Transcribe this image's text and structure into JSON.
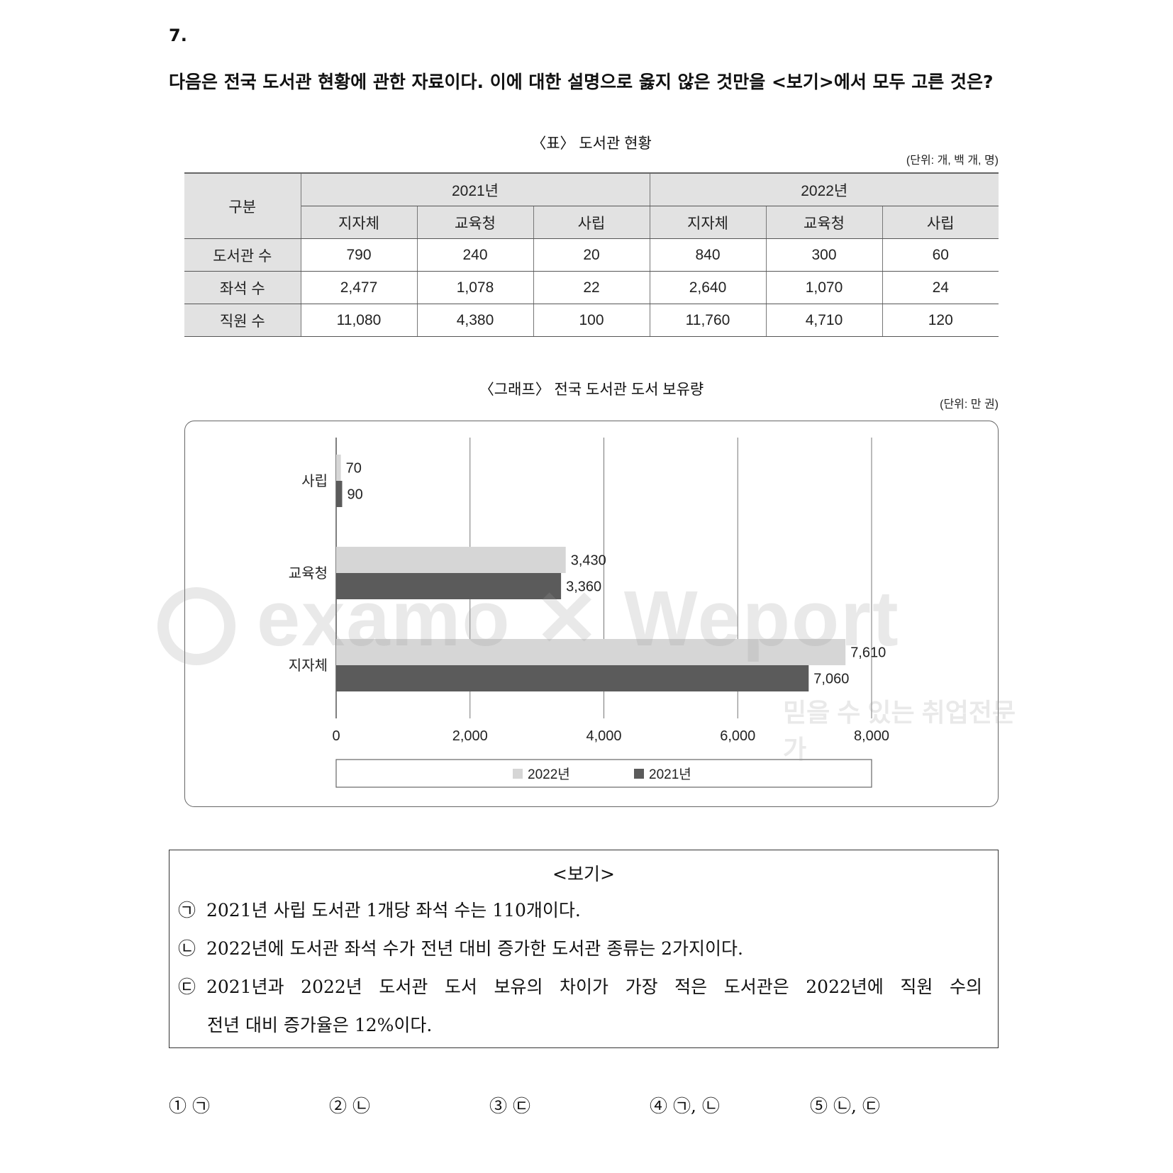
{
  "question": {
    "number": "7.",
    "text": "다음은 전국 도서관 현황에 관한 자료이다. 이에 대한 설명으로 옳지 않은 것만을 <보기>에서 모두 고른 것은?"
  },
  "table": {
    "title": "〈표〉 도서관 현황",
    "unit": "(단위: 개, 백 개, 명)",
    "corner": "구분",
    "years": [
      "2021년",
      "2022년"
    ],
    "subheaders": [
      "지자체",
      "교육청",
      "사립",
      "지자체",
      "교육청",
      "사립"
    ],
    "rows": [
      {
        "label": "도서관 수",
        "values": [
          "790",
          "240",
          "20",
          "840",
          "300",
          "60"
        ]
      },
      {
        "label": "좌석 수",
        "values": [
          "2,477",
          "1,078",
          "22",
          "2,640",
          "1,070",
          "24"
        ]
      },
      {
        "label": "직원 수",
        "values": [
          "11,080",
          "4,380",
          "100",
          "11,760",
          "4,710",
          "120"
        ]
      }
    ]
  },
  "graph": {
    "title": "〈그래프〉 전국 도서관 도서 보유량",
    "unit": "(단위: 만 권)"
  },
  "chart_data": {
    "type": "bar",
    "orientation": "horizontal",
    "categories": [
      "사립",
      "교육청",
      "지자체"
    ],
    "series": [
      {
        "name": "2022년",
        "values": [
          70,
          3430,
          7610
        ],
        "labels": [
          "70",
          "3,430",
          "7,610"
        ],
        "color": "#d6d6d6"
      },
      {
        "name": "2021년",
        "values": [
          90,
          3360,
          7060
        ],
        "labels": [
          "90",
          "3,360",
          "7,060"
        ],
        "color": "#5b5b5b"
      }
    ],
    "xlim": [
      0,
      8000
    ],
    "xticks": [
      0,
      2000,
      4000,
      6000,
      8000
    ],
    "xtick_labels": [
      "0",
      "2,000",
      "4,000",
      "6,000",
      "8,000"
    ],
    "grid": true,
    "legend": "bottom"
  },
  "watermark": {
    "brand": "examo ✕ Weport",
    "slogan": "믿을 수 있는 취업전문가"
  },
  "bogi": {
    "title": "<보기>",
    "items": [
      {
        "mark": "㉠",
        "text": "2021년 사립 도서관 1개당 좌석 수는 110개이다."
      },
      {
        "mark": "㉡",
        "text": "2022년에 도서관 좌석 수가 전년 대비 증가한 도서관 종류는 2가지이다."
      },
      {
        "mark": "㉢",
        "text_line1": "2021년과 2022년 도서관 도서 보유의 차이가 가장 적은 도서관은 2022년에 직원 수의",
        "text_line2": "전년 대비 증가율은 12%이다."
      }
    ]
  },
  "choices": [
    "① ㉠",
    "② ㉡",
    "③ ㉢",
    "④ ㉠, ㉡",
    "⑤ ㉡, ㉢"
  ]
}
